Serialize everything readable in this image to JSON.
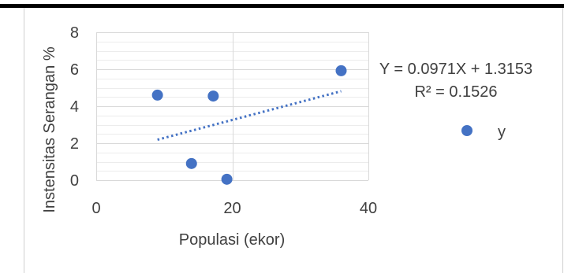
{
  "chart_data": {
    "type": "scatter",
    "title": "",
    "xlabel": "Populasi (ekor)",
    "ylabel": "Instensitas Serangan %",
    "xlim": [
      0,
      40
    ],
    "ylim": [
      0,
      8
    ],
    "x_ticks": [
      0,
      20,
      40
    ],
    "y_ticks": [
      0,
      2,
      4,
      6,
      8
    ],
    "x_tick_labels": [
      "0",
      "20",
      "40"
    ],
    "y_tick_labels": [
      "0",
      "2",
      "4",
      "6",
      "8"
    ],
    "grid": true,
    "legend_position": "right",
    "series": [
      {
        "name": "y",
        "color": "#4472C4",
        "points": [
          {
            "x": 9,
            "y": 4.6
          },
          {
            "x": 14,
            "y": 0.9
          },
          {
            "x": 17.2,
            "y": 4.55
          },
          {
            "x": 19.2,
            "y": 0.05
          },
          {
            "x": 36,
            "y": 5.92
          }
        ]
      }
    ],
    "trendline": {
      "type": "linear",
      "slope": 0.0971,
      "intercept": 1.3153,
      "x_range": [
        9,
        36
      ],
      "style": "dotted",
      "color": "#4472C4",
      "equation_label": "Y = 0.0971X + 1.3153",
      "r2_label": "R² = 0.1526"
    }
  }
}
